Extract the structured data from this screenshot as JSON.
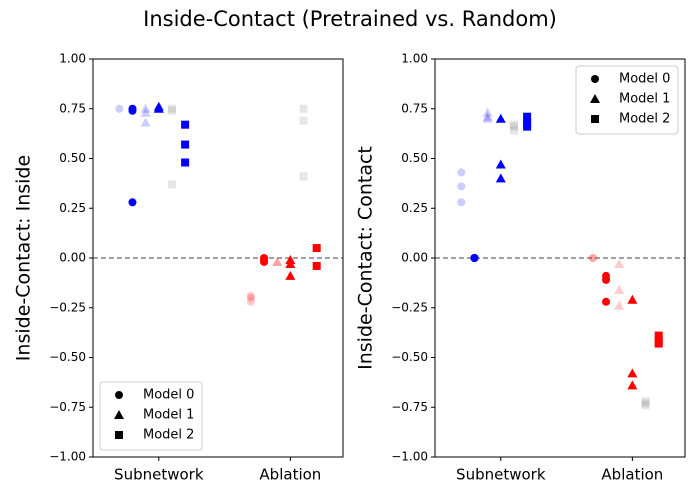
{
  "figure_title": "Inside-Contact (Pretrained vs. Random)",
  "chart_data": [
    {
      "type": "scatter",
      "ylabel": "Inside-Contact: Inside",
      "xlim": [
        -0.5,
        1.4
      ],
      "xticks": [
        {
          "value": 0,
          "label": "Subnetwork"
        },
        {
          "value": 1,
          "label": "Ablation"
        }
      ],
      "ylim": [
        -1,
        1
      ],
      "yticks": [
        {
          "value": -1,
          "label": "−1.00"
        },
        {
          "value": -0.75,
          "label": "−0.75"
        },
        {
          "value": -0.5,
          "label": "−0.50"
        },
        {
          "value": -0.25,
          "label": "−0.25"
        },
        {
          "value": 0,
          "label": "0.00"
        },
        {
          "value": 0.25,
          "label": "0.25"
        },
        {
          "value": 0.5,
          "label": "0.50"
        },
        {
          "value": 0.75,
          "label": "0.75"
        },
        {
          "value": 1,
          "label": "1.00"
        }
      ],
      "hline": 0,
      "legend": "lower left",
      "series": [
        {
          "name": "Model 0",
          "marker": "circle",
          "groups": [
            {
              "color": "#0000ff",
              "alpha": 0.2,
              "x": [
                -0.3
              ],
              "y": [
                0.75
              ]
            },
            {
              "color": "#0000ff",
              "alpha": 1,
              "x": [
                -0.2,
                -0.2,
                -0.2
              ],
              "y": [
                0.75,
                0.74,
                0.28
              ]
            },
            {
              "color": "#ff0000",
              "alpha": 0.2,
              "x": [
                0.7,
                0.7,
                0.7
              ],
              "y": [
                -0.19,
                -0.2,
                -0.22
              ]
            },
            {
              "color": "#ff0000",
              "alpha": 1,
              "x": [
                0.8,
                0.8,
                0.8
              ],
              "y": [
                -0.01,
                -0.02,
                0
              ]
            }
          ]
        },
        {
          "name": "Model 1",
          "marker": "triangle",
          "groups": [
            {
              "color": "#0000ff",
              "alpha": 0.2,
              "x": [
                -0.1,
                -0.1,
                -0.1
              ],
              "y": [
                0.75,
                0.73,
                0.68
              ]
            },
            {
              "color": "#0000ff",
              "alpha": 1,
              "x": [
                0,
                0
              ],
              "y": [
                0.75,
                0.76
              ]
            },
            {
              "color": "#ff0000",
              "alpha": 0.2,
              "x": [
                0.9,
                0.9
              ],
              "y": [
                -0.02,
                -0.02
              ]
            },
            {
              "color": "#ff0000",
              "alpha": 1,
              "x": [
                1,
                1,
                1
              ],
              "y": [
                -0.01,
                -0.03,
                -0.09
              ]
            }
          ]
        },
        {
          "name": "Model 2",
          "marker": "square",
          "groups": [
            {
              "color": "#808080",
              "alpha": 0.2,
              "x": [
                0.1,
                0.1,
                0.1
              ],
              "y": [
                0.75,
                0.74,
                0.37
              ]
            },
            {
              "color": "#0000ff",
              "alpha": 1,
              "x": [
                0.2,
                0.2,
                0.2
              ],
              "y": [
                0.67,
                0.57,
                0.48
              ]
            },
            {
              "color": "#808080",
              "alpha": 0.2,
              "x": [
                1.1,
                1.1,
                1.1
              ],
              "y": [
                0.75,
                0.69,
                0.41
              ]
            },
            {
              "color": "#ff0000",
              "alpha": 1,
              "x": [
                1.2,
                1.2
              ],
              "y": [
                0.05,
                -0.04
              ]
            }
          ]
        }
      ]
    },
    {
      "type": "scatter",
      "ylabel": "Inside-Contact: Contact",
      "xlim": [
        -0.5,
        1.4
      ],
      "xticks": [
        {
          "value": 0,
          "label": "Subnetwork"
        },
        {
          "value": 1,
          "label": "Ablation"
        }
      ],
      "ylim": [
        -1,
        1
      ],
      "yticks": [
        {
          "value": -1,
          "label": "−1.00"
        },
        {
          "value": -0.75,
          "label": "−0.75"
        },
        {
          "value": -0.5,
          "label": "−0.50"
        },
        {
          "value": -0.25,
          "label": "−0.25"
        },
        {
          "value": 0,
          "label": "0.00"
        },
        {
          "value": 0.25,
          "label": "0.25"
        },
        {
          "value": 0.5,
          "label": "0.50"
        },
        {
          "value": 0.75,
          "label": "0.75"
        },
        {
          "value": 1,
          "label": "1.00"
        }
      ],
      "hline": 0,
      "legend": "upper right",
      "series": [
        {
          "name": "Model 0",
          "marker": "circle",
          "groups": [
            {
              "color": "#0000ff",
              "alpha": 0.2,
              "x": [
                -0.3,
                -0.3,
                -0.3
              ],
              "y": [
                0.43,
                0.36,
                0.28
              ]
            },
            {
              "color": "#0000ff",
              "alpha": 1,
              "x": [
                -0.2,
                -0.2,
                -0.2
              ],
              "y": [
                0,
                0,
                0
              ]
            },
            {
              "color": "#ff0000",
              "alpha": 0.2,
              "x": [
                0.7,
                0.7
              ],
              "y": [
                0,
                0
              ]
            },
            {
              "color": "#ff0000",
              "alpha": 1,
              "x": [
                0.8,
                0.8,
                0.8
              ],
              "y": [
                -0.09,
                -0.11,
                -0.22
              ]
            }
          ]
        },
        {
          "name": "Model 1",
          "marker": "triangle",
          "groups": [
            {
              "color": "#0000ff",
              "alpha": 0.2,
              "x": [
                -0.1,
                -0.1,
                -0.1
              ],
              "y": [
                0.73,
                0.71,
                0.7
              ]
            },
            {
              "color": "#0000ff",
              "alpha": 1,
              "x": [
                0,
                0,
                0
              ],
              "y": [
                0.7,
                0.47,
                0.4
              ]
            },
            {
              "color": "#ff0000",
              "alpha": 0.2,
              "x": [
                0.9,
                0.9,
                0.9
              ],
              "y": [
                -0.03,
                -0.16,
                -0.24
              ]
            },
            {
              "color": "#ff0000",
              "alpha": 1,
              "x": [
                1,
                1,
                1
              ],
              "y": [
                -0.21,
                -0.58,
                -0.64
              ]
            }
          ]
        },
        {
          "name": "Model 2",
          "marker": "square",
          "groups": [
            {
              "color": "#808080",
              "alpha": 0.2,
              "x": [
                0.1,
                0.1,
                0.1
              ],
              "y": [
                0.67,
                0.66,
                0.64
              ]
            },
            {
              "color": "#0000ff",
              "alpha": 1,
              "x": [
                0.2,
                0.2,
                0.2
              ],
              "y": [
                0.71,
                0.68,
                0.66
              ]
            },
            {
              "color": "#808080",
              "alpha": 0.2,
              "x": [
                1.1,
                1.1,
                1.1
              ],
              "y": [
                -0.72,
                -0.73,
                -0.74
              ]
            },
            {
              "color": "#ff0000",
              "alpha": 1,
              "x": [
                1.2,
                1.2,
                1.2
              ],
              "y": [
                -0.39,
                -0.42,
                -0.43
              ]
            }
          ]
        }
      ]
    }
  ]
}
